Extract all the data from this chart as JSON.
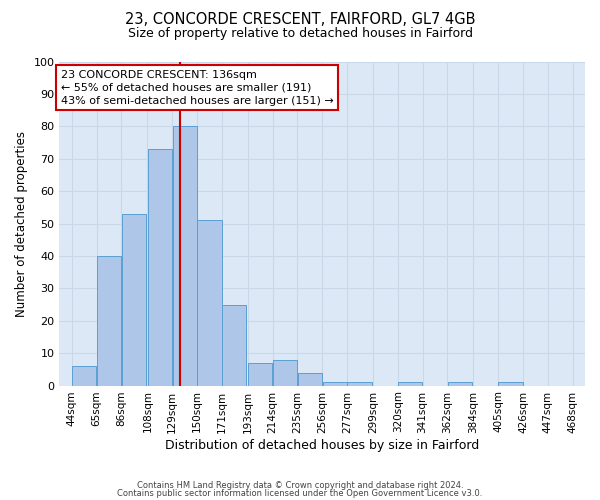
{
  "title1": "23, CONCORDE CRESCENT, FAIRFORD, GL7 4GB",
  "title2": "Size of property relative to detached houses in Fairford",
  "xlabel": "Distribution of detached houses by size in Fairford",
  "ylabel": "Number of detached properties",
  "bin_labels": [
    "44sqm",
    "65sqm",
    "86sqm",
    "108sqm",
    "129sqm",
    "150sqm",
    "171sqm",
    "193sqm",
    "214sqm",
    "235sqm",
    "256sqm",
    "277sqm",
    "299sqm",
    "320sqm",
    "341sqm",
    "362sqm",
    "384sqm",
    "405sqm",
    "426sqm",
    "447sqm",
    "468sqm"
  ],
  "bin_edges": [
    44,
    65,
    86,
    108,
    129,
    150,
    171,
    193,
    214,
    235,
    256,
    277,
    299,
    320,
    341,
    362,
    384,
    405,
    426,
    447,
    468
  ],
  "bar_heights": [
    6,
    40,
    53,
    73,
    80,
    51,
    25,
    7,
    8,
    4,
    1,
    1,
    0,
    1,
    0,
    1,
    0,
    1,
    0,
    0
  ],
  "bar_color": "#aec6e8",
  "bar_edge_color": "#5a9fd4",
  "property_value": 136,
  "vline_color": "#cc0000",
  "ylim_max": 100,
  "yticks": [
    0,
    10,
    20,
    30,
    40,
    50,
    60,
    70,
    80,
    90,
    100
  ],
  "annotation_line1": "23 CONCORDE CRESCENT: 136sqm",
  "annotation_line2": "← 55% of detached houses are smaller (191)",
  "annotation_line3": "43% of semi-detached houses are larger (151) →",
  "annotation_box_edge_color": "#cc0000",
  "grid_color": "#c8d8e8",
  "bg_color": "#dce8f5",
  "footer1": "Contains HM Land Registry data © Crown copyright and database right 2024.",
  "footer2": "Contains public sector information licensed under the Open Government Licence v3.0."
}
